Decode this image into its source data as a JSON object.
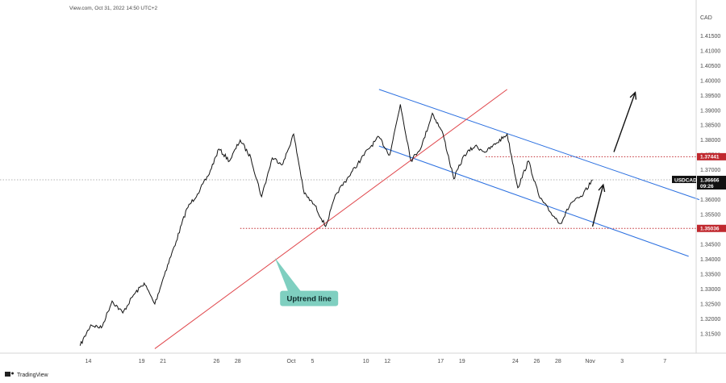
{
  "header": {
    "source": "View.com, Oct 31, 2022 14:50 UTC+2"
  },
  "footer": {
    "logo_text": "TradingView",
    "logo_icon": "tradingview-logo-icon"
  },
  "colors": {
    "price_line": "#111111",
    "channel": "#2a6fe0",
    "uptrend": "#e0474c",
    "support_resistance": "#c0282e",
    "current_price": "#111111",
    "annotation_bg": "#7fcfc0",
    "arrow": "#111111",
    "axis_text": "#4a4a4a"
  },
  "chart_data": {
    "type": "line",
    "symbol": "USDCAD",
    "y_axis_title": "CAD",
    "ylim": [
      1.31,
      1.425
    ],
    "y_ticks": [
      1.315,
      1.32,
      1.325,
      1.33,
      1.335,
      1.34,
      1.345,
      1.35,
      1.355,
      1.36,
      1.365,
      1.37,
      1.375,
      1.38,
      1.385,
      1.39,
      1.395,
      1.4,
      1.405,
      1.41,
      1.415
    ],
    "y_tick_labels": [
      "1.31500",
      "1.32000",
      "1.32500",
      "1.33000",
      "1.33500",
      "1.34000",
      "1.34500",
      "1.35000",
      "1.35500",
      "1.36000",
      "1.36500",
      "1.37000",
      "1.37500",
      "1.38000",
      "1.38500",
      "1.39000",
      "1.39500",
      "1.40000",
      "1.40500",
      "1.41000",
      "1.41500"
    ],
    "x_axis": {
      "start": "2022-09-14",
      "end": "2022-11-09",
      "ticks": [
        {
          "date": "2022-09-14",
          "label": "14"
        },
        {
          "date": "2022-09-19",
          "label": "19"
        },
        {
          "date": "2022-09-21",
          "label": "21"
        },
        {
          "date": "2022-09-26",
          "label": "26"
        },
        {
          "date": "2022-09-28",
          "label": "28"
        },
        {
          "date": "2022-10-03",
          "label": "Oct"
        },
        {
          "date": "2022-10-05",
          "label": "5"
        },
        {
          "date": "2022-10-10",
          "label": "10"
        },
        {
          "date": "2022-10-12",
          "label": "12"
        },
        {
          "date": "2022-10-17",
          "label": "17"
        },
        {
          "date": "2022-10-19",
          "label": "19"
        },
        {
          "date": "2022-10-24",
          "label": "24"
        },
        {
          "date": "2022-10-26",
          "label": "26"
        },
        {
          "date": "2022-10-28",
          "label": "28"
        },
        {
          "date": "2022-10-31",
          "label": "Nov"
        },
        {
          "date": "2022-11-03",
          "label": "3"
        },
        {
          "date": "2022-11-07",
          "label": "7"
        }
      ]
    },
    "grid": false,
    "series": [
      {
        "name": "USDCAD",
        "type": "line",
        "points": [
          [
            "2022-09-13",
            1.311
          ],
          [
            "2022-09-14",
            1.318
          ],
          [
            "2022-09-15",
            1.317
          ],
          [
            "2022-09-16",
            1.326
          ],
          [
            "2022-09-17",
            1.322
          ],
          [
            "2022-09-18",
            1.328
          ],
          [
            "2022-09-19",
            1.332
          ],
          [
            "2022-09-20",
            1.325
          ],
          [
            "2022-09-21",
            1.336
          ],
          [
            "2022-09-22",
            1.346
          ],
          [
            "2022-09-23",
            1.357
          ],
          [
            "2022-09-24",
            1.362
          ],
          [
            "2022-09-25",
            1.368
          ],
          [
            "2022-09-26",
            1.377
          ],
          [
            "2022-09-27",
            1.373
          ],
          [
            "2022-09-28",
            1.38
          ],
          [
            "2022-09-29",
            1.374
          ],
          [
            "2022-09-30",
            1.361
          ],
          [
            "2022-10-01",
            1.374
          ],
          [
            "2022-10-02",
            1.372
          ],
          [
            "2022-10-03",
            1.382
          ],
          [
            "2022-10-04",
            1.362
          ],
          [
            "2022-10-05",
            1.358
          ],
          [
            "2022-10-06",
            1.351
          ],
          [
            "2022-10-07",
            1.362
          ],
          [
            "2022-10-08",
            1.367
          ],
          [
            "2022-10-09",
            1.372
          ],
          [
            "2022-10-10",
            1.377
          ],
          [
            "2022-10-11",
            1.381
          ],
          [
            "2022-10-12",
            1.375
          ],
          [
            "2022-10-13",
            1.392
          ],
          [
            "2022-10-14",
            1.373
          ],
          [
            "2022-10-15",
            1.378
          ],
          [
            "2022-10-16",
            1.389
          ],
          [
            "2022-10-17",
            1.382
          ],
          [
            "2022-10-18",
            1.367
          ],
          [
            "2022-10-19",
            1.375
          ],
          [
            "2022-10-20",
            1.378
          ],
          [
            "2022-10-21",
            1.376
          ],
          [
            "2022-10-22",
            1.379
          ],
          [
            "2022-10-23",
            1.382
          ],
          [
            "2022-10-24",
            1.364
          ],
          [
            "2022-10-25",
            1.373
          ],
          [
            "2022-10-26",
            1.361
          ],
          [
            "2022-10-27",
            1.356
          ],
          [
            "2022-10-28",
            1.352
          ],
          [
            "2022-10-29",
            1.359
          ],
          [
            "2022-10-30",
            1.361
          ],
          [
            "2022-10-31",
            1.3667
          ]
        ]
      }
    ],
    "drawings": {
      "channel_upper": {
        "from": [
          "2022-10-11",
          1.397
        ],
        "to": [
          "2022-11-10",
          1.36
        ]
      },
      "channel_lower": {
        "from": [
          "2022-10-11",
          1.378
        ],
        "to": [
          "2022-11-09",
          1.341
        ]
      },
      "uptrend_line": {
        "from": [
          "2022-09-20",
          1.31
        ],
        "to": [
          "2022-10-23",
          1.397
        ]
      },
      "resistance_level": {
        "value": 1.37441,
        "from": "2022-10-21",
        "label": "1.37441"
      },
      "support_level": {
        "value": 1.35036,
        "from": "2022-09-28",
        "label": "1.35036"
      },
      "current_price": {
        "value": 1.36666,
        "label": "1.36666",
        "symbol_label": "USDCAD",
        "countdown": "09:26"
      },
      "arrows": [
        {
          "from": [
            "2022-11-02",
            1.376
          ],
          "to": [
            "2022-11-04",
            1.396
          ]
        },
        {
          "from": [
            "2022-10-31",
            1.351
          ],
          "to": [
            "2022-11-01",
            1.365
          ]
        }
      ],
      "annotation": {
        "text": "Uptrend line",
        "anchor": [
          "2022-10-02",
          1.34
        ],
        "box_at": [
          "2022-10-04",
          1.327
        ]
      }
    }
  }
}
